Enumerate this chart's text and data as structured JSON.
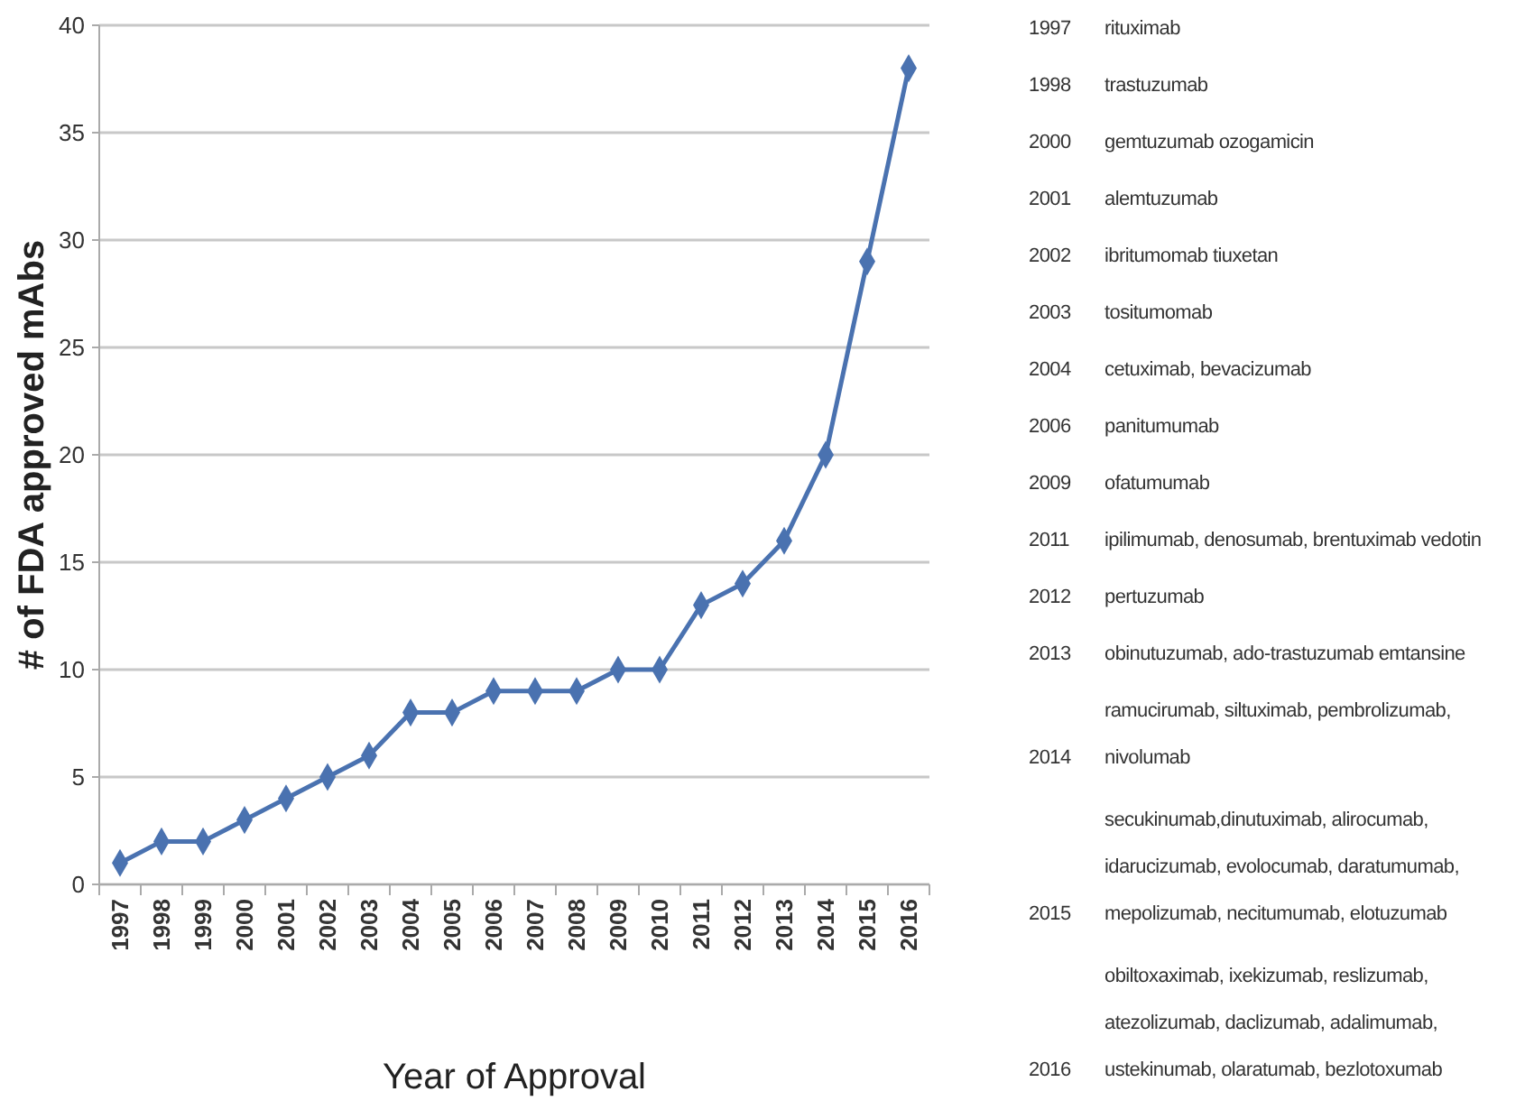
{
  "chart_data": {
    "type": "line",
    "xlabel": "Year of Approval",
    "ylabel": "# of FDA approved mAbs",
    "categories": [
      "1997",
      "1998",
      "1999",
      "2000",
      "2001",
      "2002",
      "2003",
      "2004",
      "2005",
      "2006",
      "2007",
      "2008",
      "2009",
      "2010",
      "2011",
      "2012",
      "2013",
      "2014",
      "2015",
      "2016"
    ],
    "series": [
      {
        "color": "#4a72b0",
        "values": [
          1,
          2,
          2,
          3,
          4,
          5,
          6,
          8,
          8,
          9,
          9,
          9,
          10,
          10,
          13,
          14,
          16,
          20,
          29,
          38
        ]
      }
    ],
    "ylim": [
      0,
      40
    ],
    "yticks": [
      0,
      5,
      10,
      15,
      20,
      25,
      30,
      35,
      40
    ],
    "grid": "y",
    "marker": "diamond",
    "line_style": "solid",
    "annotations": [
      "1997 rituximab",
      "1998 trastuzumab",
      "2000 gemtuzumab ozogamicin",
      "2001 alemtuzumab",
      "2002 ibritumomab tiuxetan",
      "2003 tositumomab",
      "2004 cetuximab, bevacizumab",
      "2006 panitumumab",
      "2009 ofatumumab",
      "2011 ipilimumab, denosumab, brentuximab vedotin",
      "2012 pertuzumab",
      "2013 obinutuzumab, ado-trastuzumab emtansine",
      "2014 ramucirumab, siltuximab, pembrolizumab,\nnivolumab",
      "2015 secukinumab,dinutuximab, alirocumab,\nidarucizumab, evolocumab, daratumumab,\nmepolizumab, necitumumab, elotuzumab",
      "2016 obiltoxaximab, ixekizumab, reslizumab,\natezolizumab, daclizumab, adalimumab,\nustekinumab, olaratumab, bezlotoxumab"
    ]
  }
}
